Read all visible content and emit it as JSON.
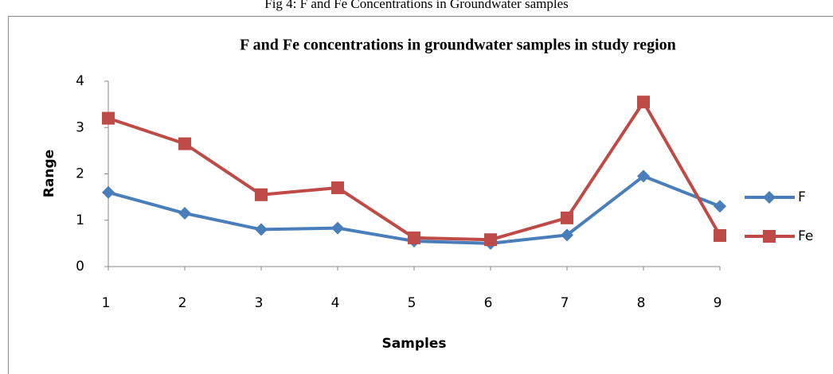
{
  "caption": "Fig 4: F and Fe Concentrations in Groundwater samples",
  "chart_data": {
    "type": "line",
    "title": "F and Fe concentrations in groundwater samples in study region",
    "x_label": "Samples",
    "y_label": "Range",
    "x": [
      1,
      2,
      3,
      4,
      5,
      6,
      7,
      8,
      9
    ],
    "xlim": [
      1,
      9
    ],
    "xticks": [
      1,
      2,
      3,
      4,
      5,
      6,
      7,
      8,
      9
    ],
    "ylim": [
      0,
      4
    ],
    "yticks": [
      0,
      1,
      2,
      3,
      4
    ],
    "grid": false,
    "legend": "right",
    "series": [
      {
        "name": "F",
        "color": "#4a7ebb",
        "marker": "diamond",
        "values": [
          1.6,
          1.15,
          0.8,
          0.83,
          0.55,
          0.5,
          0.68,
          1.95,
          1.3
        ]
      },
      {
        "name": "Fe",
        "color": "#be4b48",
        "marker": "square",
        "values": [
          3.2,
          2.65,
          1.55,
          1.7,
          0.62,
          0.58,
          1.05,
          3.55,
          0.67
        ]
      }
    ]
  }
}
